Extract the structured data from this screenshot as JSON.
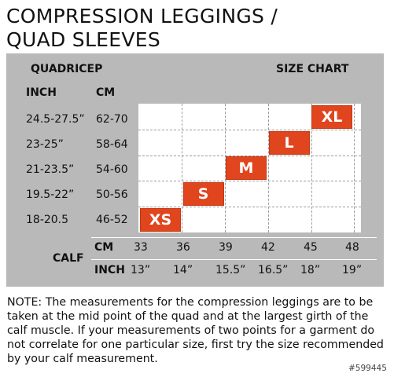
{
  "title": {
    "line1": "COMPRESSION LEGGINGS /",
    "line2": "QUAD SLEEVES"
  },
  "chart": {
    "quadricep_label": "QUADRICEP",
    "size_chart_label": "SIZE CHART",
    "inch_header": "INCH",
    "cm_header": "CM",
    "rows": [
      {
        "inch": "24.5-27.5”",
        "cm": "62-70"
      },
      {
        "inch": "23-25”",
        "cm": "58-64"
      },
      {
        "inch": "21-23.5”",
        "cm": "54-60"
      },
      {
        "inch": "19.5-22”",
        "cm": "50-56"
      },
      {
        "inch": "18-20.5",
        "cm": "46-52"
      }
    ],
    "sizes": [
      "XS",
      "S",
      "M",
      "L",
      "XL"
    ],
    "calf_label": "CALF",
    "calf_cm_label": "CM",
    "calf_inch_label": "INCH",
    "calf_cm": [
      "33",
      "36",
      "39",
      "42",
      "45",
      "48"
    ],
    "calf_inch": [
      "13”",
      "14”",
      "15.5”",
      "16.5”",
      "18”",
      "19”"
    ],
    "size_color": "#e0451e",
    "panel_color": "#b9b9b9"
  },
  "note": "NOTE: The measurements for the compression leggings are to be taken at the mid point of the quad and at the largest girth of the calf muscle. If your measurements of two points for a garment do not correlate for one particular size, first try the size recommended by your calf measurement.",
  "watermark": "#599445"
}
